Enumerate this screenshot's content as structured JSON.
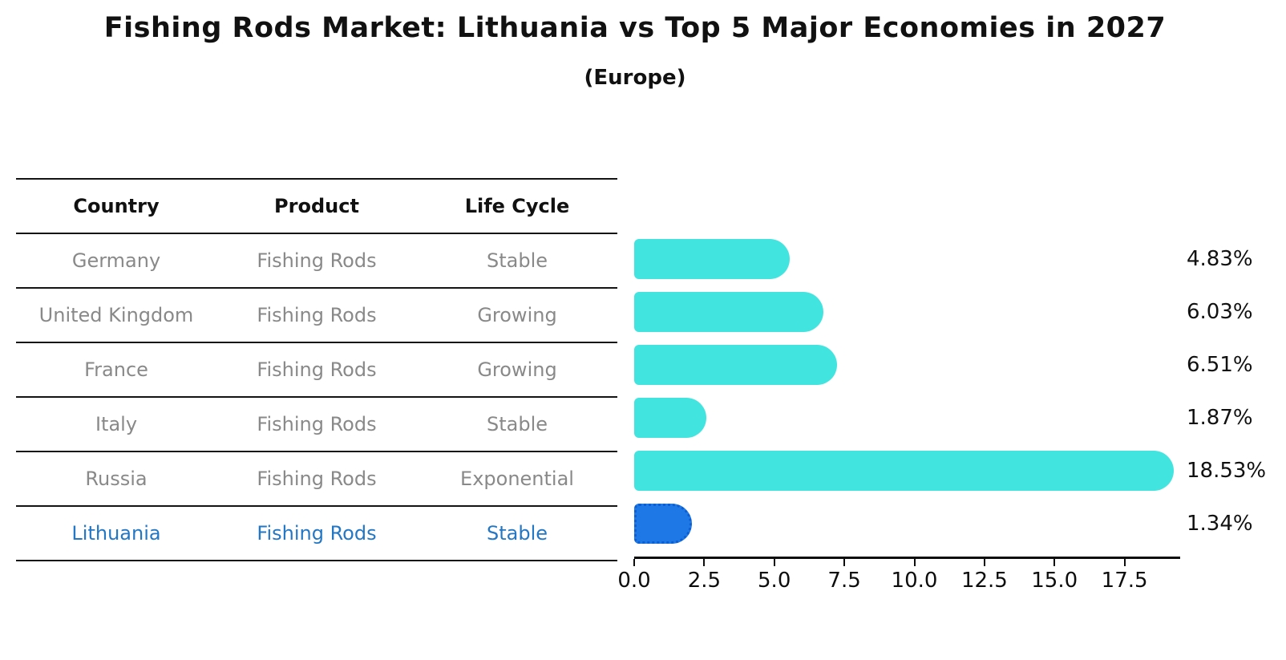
{
  "title": "Fishing Rods Market: Lithuania vs Top 5 Major Economies in 2027",
  "subtitle": "(Europe)",
  "table": {
    "headers": [
      "Country",
      "Product",
      "Life Cycle"
    ],
    "rows": [
      {
        "country": "Germany",
        "product": "Fishing Rods",
        "life_cycle": "Stable",
        "highlight": false
      },
      {
        "country": "United Kingdom",
        "product": "Fishing Rods",
        "life_cycle": "Growing",
        "highlight": false
      },
      {
        "country": "France",
        "product": "Fishing Rods",
        "life_cycle": "Growing",
        "highlight": false
      },
      {
        "country": "Italy",
        "product": "Fishing Rods",
        "life_cycle": "Stable",
        "highlight": false
      },
      {
        "country": "Russia",
        "product": "Fishing Rods",
        "life_cycle": "Exponential",
        "highlight": false
      },
      {
        "country": "Lithuania",
        "product": "Fishing Rods",
        "life_cycle": "Stable",
        "highlight": true
      }
    ]
  },
  "chart_data": {
    "type": "bar",
    "orientation": "horizontal",
    "title": "Fishing Rods Market: Lithuania vs Top 5 Major Economies in 2027",
    "subtitle": "(Europe)",
    "categories": [
      "Germany",
      "United Kingdom",
      "France",
      "Italy",
      "Russia",
      "Lithuania"
    ],
    "values": [
      4.83,
      6.03,
      6.51,
      1.87,
      18.53,
      1.34
    ],
    "value_labels": [
      "4.83%",
      "6.03%",
      "6.51%",
      "1.87%",
      "18.53%",
      "1.34%"
    ],
    "xlabel": "",
    "ylabel": "",
    "xlim": [
      0,
      19.4
    ],
    "x_ticks": [
      "0.0",
      "2.5",
      "5.0",
      "7.5",
      "10.0",
      "12.5",
      "15.0",
      "17.5"
    ],
    "grid": false,
    "legend": false,
    "bar_color": "#41e4de",
    "highlight_color": "#1e79e6",
    "highlight_index": 5,
    "highlight_text_color": "#2377c4"
  },
  "colors": {
    "background": "#ffffff",
    "bar_cyan": "#41e4de",
    "bar_blue": "#1e79e6",
    "table_text_gray": "#898989",
    "highlight_text_blue": "#2377c4",
    "line_black": "#141414"
  }
}
